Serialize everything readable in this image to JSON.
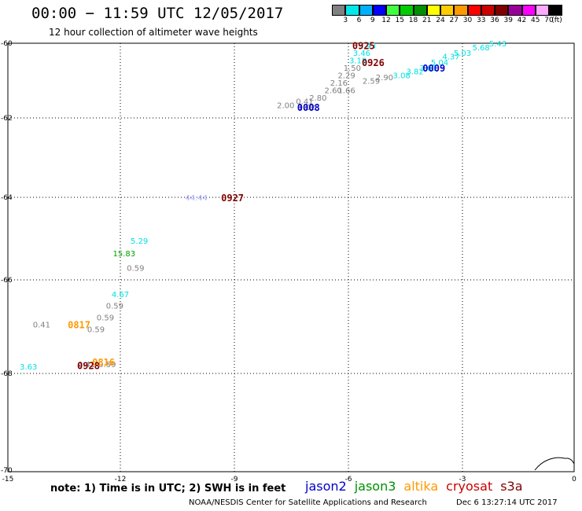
{
  "header": {
    "title": "00:00 − 11:59 UTC 12/05/2017",
    "subtitle": "12 hour collection of altimeter wave heights"
  },
  "colorbar": {
    "colors": [
      "#808080",
      "#00e8e8",
      "#00b0ff",
      "#0000ff",
      "#40ff40",
      "#00cc00",
      "#009000",
      "#ffff00",
      "#ffcc00",
      "#ff9900",
      "#ff0000",
      "#cc0000",
      "#800000",
      "#990099",
      "#ff00ff",
      "#ffaaff",
      "#000000"
    ],
    "labels": [
      "3",
      "6",
      "9",
      "12",
      "15",
      "18",
      "21",
      "24",
      "27",
      "30",
      "33",
      "36",
      "39",
      "42",
      "45",
      "70",
      "(ft)"
    ]
  },
  "axes": {
    "x_ticks": [
      "-15",
      "-12",
      "-9",
      "-6",
      "-3",
      "0"
    ],
    "y_ticks": [
      "-60",
      "-62",
      "-64",
      "-66",
      "-68",
      "-70"
    ]
  },
  "observations": [
    {
      "text": "3.43",
      "color": "#00e0e0",
      "lon": -5.5,
      "lat": -60.05
    },
    {
      "text": "3.46",
      "color": "#00e0e0",
      "lon": -5.65,
      "lat": -60.25
    },
    {
      "text": "3.18",
      "color": "#00e0e0",
      "lon": -5.75,
      "lat": -60.45
    },
    {
      "text": "1.50",
      "color": "#808080",
      "lon": -5.9,
      "lat": -60.65
    },
    {
      "text": "2.29",
      "color": "#808080",
      "lon": -6.05,
      "lat": -60.85
    },
    {
      "text": "2.16",
      "color": "#808080",
      "lon": -6.25,
      "lat": -61.05
    },
    {
      "text": "2.60",
      "color": "#808080",
      "lon": -6.4,
      "lat": -61.25
    },
    {
      "text": "1.66",
      "color": "#808080",
      "lon": -6.05,
      "lat": -61.25
    },
    {
      "text": "2.59",
      "color": "#808080",
      "lon": -5.4,
      "lat": -61.0
    },
    {
      "text": "2.90",
      "color": "#808080",
      "lon": -5.05,
      "lat": -60.9
    },
    {
      "text": "2.80",
      "color": "#808080",
      "lon": -6.8,
      "lat": -61.45
    },
    {
      "text": "0.41",
      "color": "#808080",
      "lon": -7.15,
      "lat": -61.55
    },
    {
      "text": "2.00",
      "color": "#808080",
      "lon": -7.65,
      "lat": -61.65
    },
    {
      "text": "1.02",
      "color": "#808080",
      "lon": -7.1,
      "lat": -61.7
    },
    {
      "text": "3.08",
      "color": "#00e0e0",
      "lon": -4.6,
      "lat": -60.85
    },
    {
      "text": "3.82",
      "color": "#00e0e0",
      "lon": -4.25,
      "lat": -60.75
    },
    {
      "text": "3.61",
      "color": "#00e0e0",
      "lon": -3.9,
      "lat": -60.65
    },
    {
      "text": "5.04",
      "color": "#00e0e0",
      "lon": -3.6,
      "lat": -60.5
    },
    {
      "text": "4.37",
      "color": "#00e0e0",
      "lon": -3.3,
      "lat": -60.35
    },
    {
      "text": "5.03",
      "color": "#00e0e0",
      "lon": -3.0,
      "lat": -60.25
    },
    {
      "text": "5.68",
      "color": "#00e0e0",
      "lon": -2.5,
      "lat": -60.1
    },
    {
      "text": "5.43",
      "color": "#00e0e0",
      "lon": -2.05,
      "lat": -59.95
    },
    {
      "text": "44.44",
      "color": "#aaaaff",
      "lon": -10.0,
      "lat": -64.0
    },
    {
      "text": "5.29",
      "color": "#00e0e0",
      "lon": -11.5,
      "lat": -65.05
    },
    {
      "text": "15.83",
      "color": "#00a000",
      "lon": -11.9,
      "lat": -65.35
    },
    {
      "text": "0.59",
      "color": "#808080",
      "lon": -11.6,
      "lat": -65.7
    },
    {
      "text": "4.67",
      "color": "#00e0e0",
      "lon": -12.0,
      "lat": -66.3
    },
    {
      "text": "0.59",
      "color": "#808080",
      "lon": -12.15,
      "lat": -66.55
    },
    {
      "text": "0.59",
      "color": "#808080",
      "lon": -12.4,
      "lat": -66.8
    },
    {
      "text": "0.41",
      "color": "#808080",
      "lon": -14.1,
      "lat": -66.95
    },
    {
      "text": "0.59",
      "color": "#808080",
      "lon": -12.65,
      "lat": -67.05
    },
    {
      "text": "3.63",
      "color": "#00e0e0",
      "lon": -14.45,
      "lat": -67.85
    },
    {
      "text": "0.41",
      "color": "#808080",
      "lon": -12.9,
      "lat": -67.8
    },
    {
      "text": "0.59",
      "color": "#808080",
      "lon": -12.35,
      "lat": -67.8
    }
  ],
  "pass_times": [
    {
      "text": "0925",
      "color": "#800000",
      "lon": -5.6,
      "lat": -60.05
    },
    {
      "text": "0926",
      "color": "#800000",
      "lon": -5.35,
      "lat": -60.5
    },
    {
      "text": "0009",
      "color": "#0000cc",
      "lon": -3.75,
      "lat": -60.65
    },
    {
      "text": "0008",
      "color": "#0000cc",
      "lon": -7.05,
      "lat": -61.7
    },
    {
      "text": "0927",
      "color": "#800000",
      "lon": -9.05,
      "lat": -64.0
    },
    {
      "text": "0817",
      "color": "#ff9900",
      "lon": -13.1,
      "lat": -66.95
    },
    {
      "text": "0816",
      "color": "#ff9900",
      "lon": -12.45,
      "lat": -67.75
    },
    {
      "text": "0928",
      "color": "#800000",
      "lon": -12.85,
      "lat": -67.82
    }
  ],
  "footer": {
    "note": "note: 1) Time is in UTC; 2) SWH is in feet",
    "legend": [
      {
        "name": "jason2",
        "color": "#0000cc"
      },
      {
        "name": "jason3",
        "color": "#009000"
      },
      {
        "name": "altika",
        "color": "#ff9900"
      },
      {
        "name": "cryosat",
        "color": "#cc0000"
      },
      {
        "name": "s3a",
        "color": "#800000"
      }
    ],
    "credit": "NOAA/NESDIS Center for Satellite Applications and Research",
    "timestamp": "Dec  6 13:27:14 UTC 2017"
  }
}
